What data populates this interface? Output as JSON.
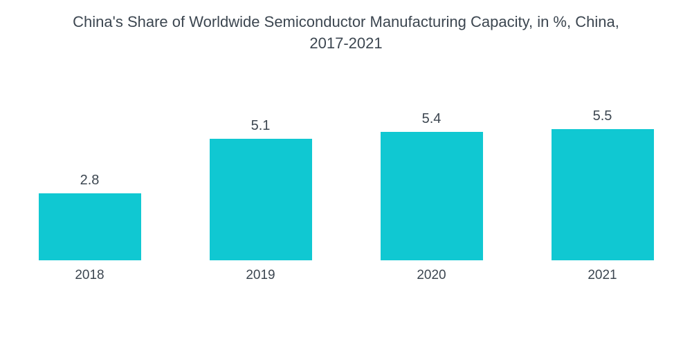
{
  "title_lines": [
    "China's Share of Worldwide Semiconductor Manufacturing Capacity, in %, China,",
    "2017-2021"
  ],
  "chart_data": {
    "type": "bar",
    "title": "China's Share of Worldwide Semiconductor Manufacturing Capacity, in %, China, 2017-2021",
    "categories": [
      "2018",
      "2019",
      "2020",
      "2021"
    ],
    "values": [
      2.8,
      5.1,
      5.4,
      5.5
    ],
    "value_labels": [
      "2.8",
      "5.1",
      "5.4",
      "5.5"
    ],
    "xlabel": "",
    "ylabel": "",
    "ylim": [
      0,
      6
    ],
    "grid": false,
    "legend": false,
    "axes_hidden": true,
    "value_labels_shown": true,
    "bar_color": "#10C8D2",
    "label_color": "#3C4650",
    "title_color": "#3C4650",
    "background": "#FFFFFF"
  }
}
